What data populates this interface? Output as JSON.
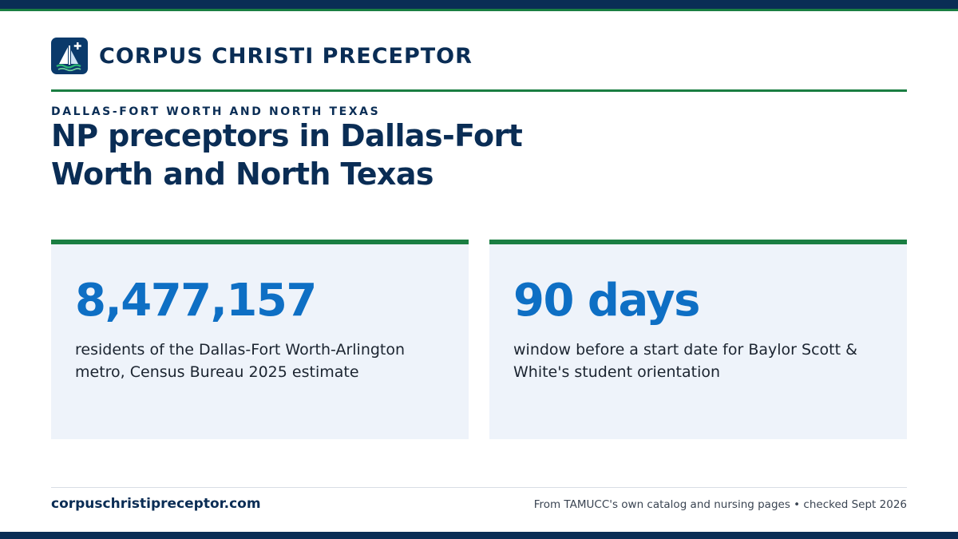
{
  "brand": {
    "name": "CORPUS CHRISTI PRECEPTOR",
    "logo_icon": "sailboat-plus-icon"
  },
  "colors": {
    "navy": "#0a2d55",
    "green": "#1a7e42",
    "accent_blue": "#0e6fc4",
    "card_bg": "#eef3fa"
  },
  "hero": {
    "eyebrow": "DALLAS-FORT WORTH AND NORTH TEXAS",
    "title": "NP preceptors in Dallas-Fort Worth and North Texas"
  },
  "stats": [
    {
      "value": "8,477,157",
      "description": "residents of the Dallas-Fort Worth-Arlington metro, Census Bureau 2025 estimate"
    },
    {
      "value": "90 days",
      "description": "window before a start date for Baylor Scott & White's student orientation"
    }
  ],
  "footer": {
    "url": "corpuschristipreceptor.com",
    "note": "From TAMUCC's own catalog and nursing pages • checked Sept 2026"
  }
}
